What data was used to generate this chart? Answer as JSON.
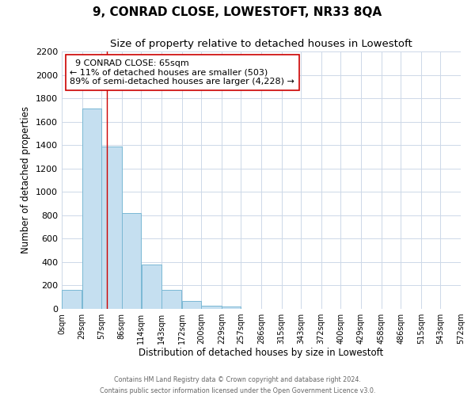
{
  "title": "9, CONRAD CLOSE, LOWESTOFT, NR33 8QA",
  "subtitle": "Size of property relative to detached houses in Lowestoft",
  "xlabel": "Distribution of detached houses by size in Lowestoft",
  "ylabel": "Number of detached properties",
  "bar_values": [
    160,
    1710,
    1390,
    820,
    380,
    160,
    65,
    30,
    20,
    0,
    0,
    0,
    0,
    0,
    0,
    0,
    0,
    0,
    0,
    0
  ],
  "bin_edges": [
    0,
    29,
    57,
    86,
    114,
    143,
    172,
    200,
    229,
    257,
    286,
    315,
    343,
    372,
    400,
    429,
    458,
    486,
    515,
    543,
    572
  ],
  "tick_labels": [
    "0sqm",
    "29sqm",
    "57sqm",
    "86sqm",
    "114sqm",
    "143sqm",
    "172sqm",
    "200sqm",
    "229sqm",
    "257sqm",
    "286sqm",
    "315sqm",
    "343sqm",
    "372sqm",
    "400sqm",
    "429sqm",
    "458sqm",
    "486sqm",
    "515sqm",
    "543sqm",
    "572sqm"
  ],
  "bar_color": "#c5dff0",
  "bar_edgecolor": "#7ab8d4",
  "property_line_x": 65,
  "property_line_color": "#cc0000",
  "annotation_title": "9 CONRAD CLOSE: 65sqm",
  "annotation_line1": "← 11% of detached houses are smaller (503)",
  "annotation_line2": "89% of semi-detached houses are larger (4,228) →",
  "annotation_box_color": "#ffffff",
  "annotation_box_edgecolor": "#cc0000",
  "ylim": [
    0,
    2200
  ],
  "yticks": [
    0,
    200,
    400,
    600,
    800,
    1000,
    1200,
    1400,
    1600,
    1800,
    2000,
    2200
  ],
  "footer_line1": "Contains HM Land Registry data © Crown copyright and database right 2024.",
  "footer_line2": "Contains public sector information licensed under the Open Government Licence v3.0.",
  "bg_color": "#ffffff",
  "grid_color": "#cdd8e8",
  "title_fontsize": 11,
  "subtitle_fontsize": 9.5,
  "tick_fontsize": 7,
  "ylabel_fontsize": 8.5,
  "xlabel_fontsize": 8.5,
  "ytick_fontsize": 8
}
